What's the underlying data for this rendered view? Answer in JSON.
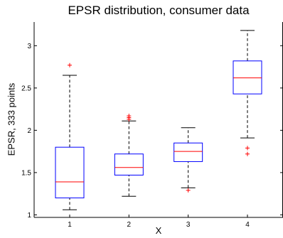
{
  "chart_data": {
    "type": "box",
    "title": "EPSR distribution, consumer data",
    "xlabel": "X",
    "ylabel": "EPSR, 333 points",
    "categories": [
      "1",
      "2",
      "3",
      "4"
    ],
    "y_ticks": [
      "1",
      "1.5",
      "2",
      "2.5",
      "3"
    ],
    "ylim": [
      0.97,
      3.28
    ],
    "grid": false,
    "colors": {
      "box": "#0000ff",
      "median": "#ff0000",
      "whisker": "#000000",
      "outlier": "#ff0000",
      "axis": "#000000"
    },
    "boxes": [
      {
        "category": "1",
        "whisker_low": 1.06,
        "q1": 1.2,
        "median": 1.39,
        "q3": 1.8,
        "whisker_high": 2.65,
        "outliers": [
          2.77
        ]
      },
      {
        "category": "2",
        "whisker_low": 1.22,
        "q1": 1.47,
        "median": 1.56,
        "q3": 1.72,
        "whisker_high": 2.11,
        "outliers": [
          2.13,
          2.15,
          2.17
        ]
      },
      {
        "category": "3",
        "whisker_low": 1.32,
        "q1": 1.63,
        "median": 1.75,
        "q3": 1.85,
        "whisker_high": 2.03,
        "outliers": [
          1.29
        ]
      },
      {
        "category": "4",
        "whisker_low": 1.91,
        "q1": 2.43,
        "median": 2.62,
        "q3": 2.82,
        "whisker_high": 3.18,
        "outliers": [
          1.72,
          1.79
        ]
      }
    ]
  }
}
